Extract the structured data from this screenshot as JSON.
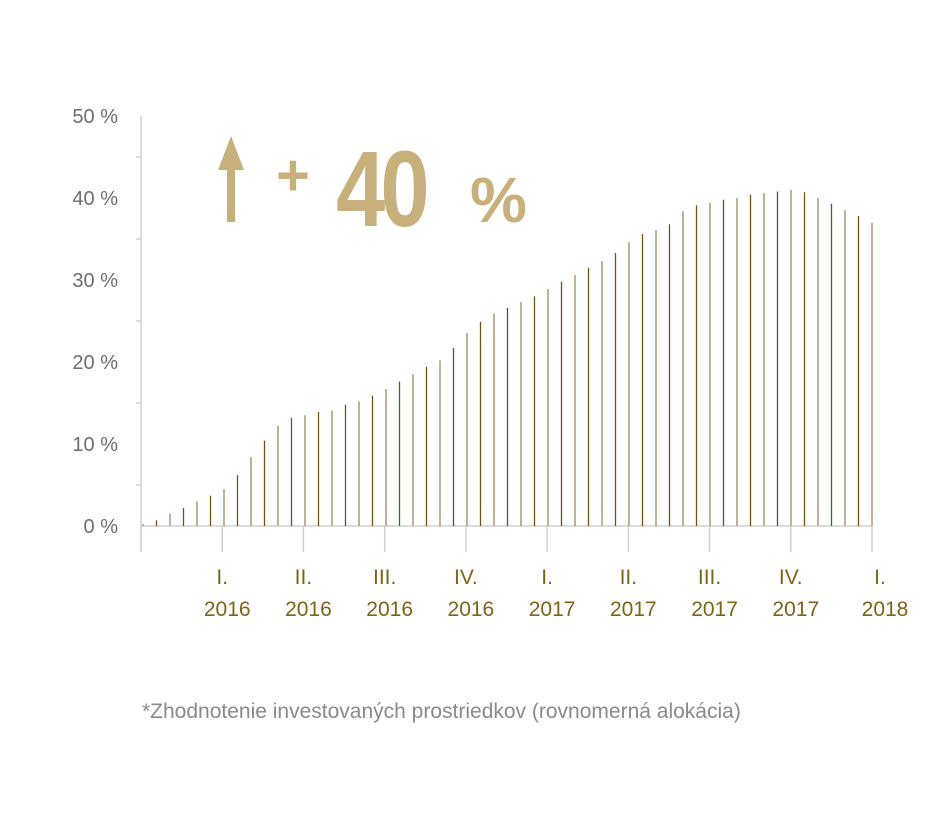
{
  "chart_data": {
    "type": "bar",
    "title": "",
    "headline": {
      "arrow": "up-arrow-icon",
      "plus": "+",
      "value": "40",
      "unit": "%"
    },
    "ylabel": "",
    "xlabel": "",
    "ylim": [
      0,
      50
    ],
    "yticks": [
      "0 %",
      "10 %",
      "20 %",
      "30 %",
      "40 %",
      "50 %"
    ],
    "xticks": [
      [
        "I.",
        "2016"
      ],
      [
        "II.",
        "2016"
      ],
      [
        "III.",
        "2016"
      ],
      [
        "IV.",
        "2016"
      ],
      [
        "I.",
        "2017"
      ],
      [
        "II.",
        "2017"
      ],
      [
        "III.",
        "2017"
      ],
      [
        "IV.",
        "2017"
      ],
      [
        "I.",
        "2018"
      ]
    ],
    "values": [
      0,
      0.7,
      1.5,
      2.2,
      3,
      3.7,
      4.5,
      6.2,
      8.4,
      10.4,
      12.2,
      13.2,
      13.5,
      13.9,
      14.1,
      14.8,
      15.2,
      15.9,
      16.7,
      17.6,
      18.5,
      19.4,
      20.2,
      21.7,
      23.5,
      24.9,
      25.9,
      26.6,
      27.3,
      28.0,
      28.9,
      29.8,
      30.6,
      31.5,
      32.3,
      33.3,
      34.6,
      35.6,
      36.1,
      36.8,
      38.4,
      39.1,
      39.4,
      39.8,
      40.0,
      40.4,
      40.6,
      40.8,
      41.0,
      40.7,
      40.0,
      39.3,
      38.5,
      37.8,
      37.0
    ],
    "colors": {
      "bar_light": "#b9a989",
      "bar_dark": "#6e5516",
      "headline": "#c8b07c",
      "axis": "#d0d0d0"
    },
    "footnote": "*Zhodnotenie investovaných prostriedkov (rovnomerná alokácia)"
  }
}
